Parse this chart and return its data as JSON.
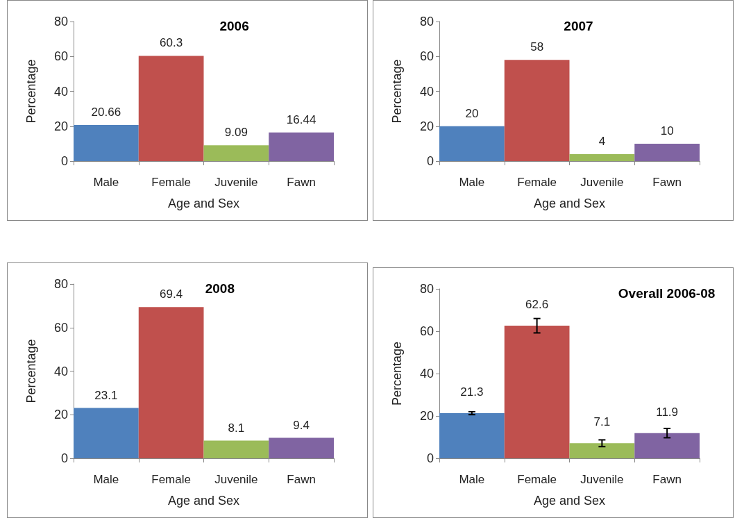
{
  "chart_data": [
    {
      "type": "bar",
      "title": "2006",
      "xlabel": "Age and Sex",
      "ylabel": "Percentage",
      "categories": [
        "Male",
        "Female",
        "Juvenile",
        "Fawn"
      ],
      "values": [
        20.66,
        60.3,
        9.09,
        16.44
      ],
      "colors": [
        "#4f81bd",
        "#c0504d",
        "#9bbb59",
        "#8064a2"
      ],
      "ylim": [
        0,
        80
      ],
      "yticks": [
        0,
        20,
        40,
        60,
        80
      ],
      "grid": false,
      "data_labels": true
    },
    {
      "type": "bar",
      "title": "2007",
      "xlabel": "Age and Sex",
      "ylabel": "Percentage",
      "categories": [
        "Male",
        "Female",
        "Juvenile",
        "Fawn"
      ],
      "values": [
        20,
        58,
        4,
        10
      ],
      "colors": [
        "#4f81bd",
        "#c0504d",
        "#9bbb59",
        "#8064a2"
      ],
      "ylim": [
        0,
        80
      ],
      "yticks": [
        0,
        20,
        40,
        60,
        80
      ],
      "grid": false,
      "data_labels": true
    },
    {
      "type": "bar",
      "title": "2008",
      "xlabel": "Age and Sex",
      "ylabel": "Percentage",
      "categories": [
        "Male",
        "Female",
        "Juvenile",
        "Fawn"
      ],
      "values": [
        23.1,
        69.4,
        8.1,
        9.4
      ],
      "colors": [
        "#4f81bd",
        "#c0504d",
        "#9bbb59",
        "#8064a2"
      ],
      "ylim": [
        0,
        80
      ],
      "yticks": [
        0,
        20,
        40,
        60,
        80
      ],
      "grid": false,
      "data_labels": true
    },
    {
      "type": "bar",
      "title": "Overall 2006-08",
      "xlabel": "Age and Sex",
      "ylabel": "Percentage",
      "categories": [
        "Male",
        "Female",
        "Juvenile",
        "Fawn"
      ],
      "values": [
        21.3,
        62.6,
        7.1,
        11.9
      ],
      "errors": [
        0.7,
        3.4,
        1.6,
        2.2
      ],
      "colors": [
        "#4f81bd",
        "#c0504d",
        "#9bbb59",
        "#8064a2"
      ],
      "ylim": [
        0,
        80
      ],
      "yticks": [
        0,
        20,
        40,
        60,
        80
      ],
      "grid": false,
      "data_labels": true
    }
  ]
}
